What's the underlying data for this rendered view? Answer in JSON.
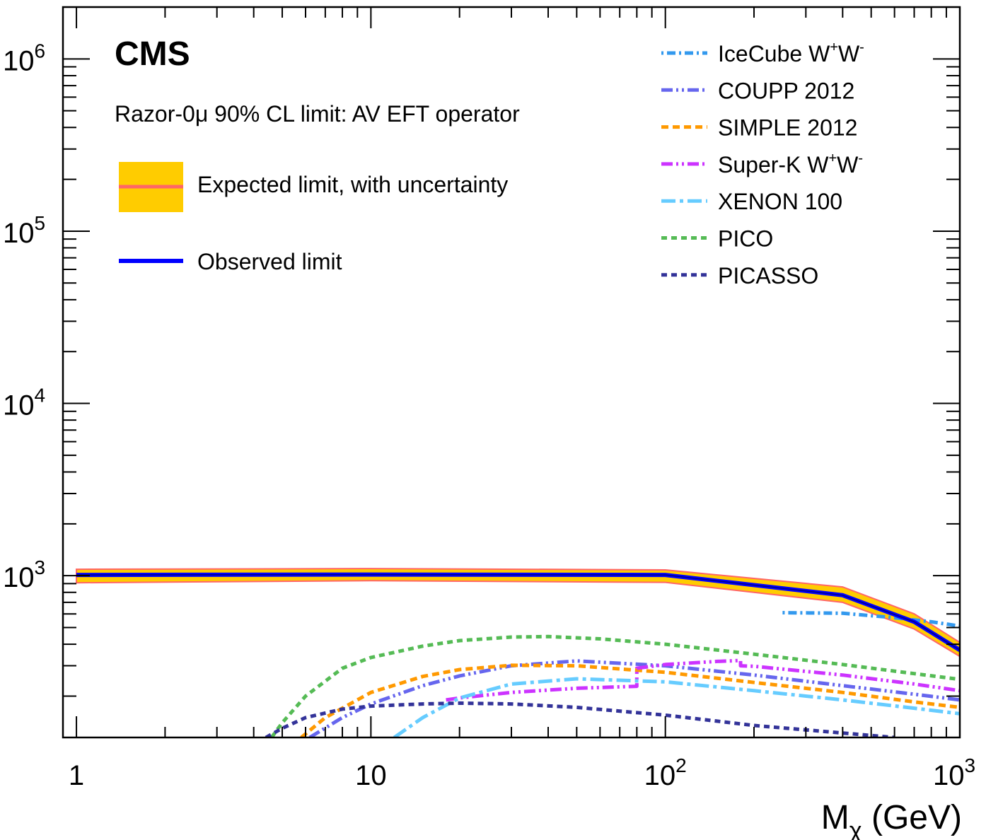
{
  "chart_data": {
    "type": "line",
    "experiment_label": "CMS",
    "subtitle": "Razor-0μ 90% CL limit: AV EFT operator",
    "xlabel": {
      "main": "M",
      "sub": "χ",
      "unit": " (GeV)"
    },
    "ylabel": "",
    "x_scale": "log",
    "y_scale": "log",
    "xlim": [
      0.9,
      1000
    ],
    "ylim": [
      115,
      2000000
    ],
    "x_tick_labels": [
      {
        "value": 1,
        "base": "1",
        "exp": ""
      },
      {
        "value": 10,
        "base": "10",
        "exp": ""
      },
      {
        "value": 100,
        "base": "10",
        "exp": "2"
      },
      {
        "value": 1000,
        "base": "10",
        "exp": "3"
      }
    ],
    "y_tick_labels": [
      {
        "value": 1000,
        "base": "10",
        "exp": "3"
      },
      {
        "value": 10000,
        "base": "10",
        "exp": "4"
      },
      {
        "value": 100000,
        "base": "10",
        "exp": "5"
      },
      {
        "value": 1000000,
        "base": "10",
        "exp": "6"
      }
    ],
    "grid": false,
    "expected_band": {
      "name": "Expected limit, with uncertainty",
      "fill_color": "#ffcc00",
      "line_color": "#ff6666",
      "x": [
        1,
        10,
        100,
        400,
        700,
        1000
      ],
      "median": [
        1000,
        1010,
        1000,
        780,
        540,
        370
      ],
      "lower": [
        910,
        935,
        915,
        700,
        490,
        340
      ],
      "upper": [
        1090,
        1100,
        1080,
        860,
        600,
        410
      ]
    },
    "observed": {
      "name": "Observed limit",
      "color": "#0000ff",
      "x": [
        1,
        10,
        100,
        400,
        700,
        1000
      ],
      "y": [
        1010,
        1015,
        1010,
        770,
        540,
        370
      ]
    },
    "series": [
      {
        "name": "IceCube W",
        "sup1": "+",
        "mid": "W",
        "sup2": "-",
        "color": "#3399ee",
        "dash": "3,5,12,5",
        "x": [
          250,
          400,
          600,
          800,
          1000
        ],
        "y": [
          610,
          605,
          570,
          540,
          510
        ]
      },
      {
        "name": "COUPP 2012",
        "color": "#6666ee",
        "dash": "16,5,3,5,3,5",
        "x": [
          6.2,
          8,
          10,
          15,
          20,
          30,
          50,
          100,
          200,
          400,
          700,
          1000
        ],
        "y": [
          115,
          150,
          180,
          230,
          262,
          300,
          320,
          300,
          265,
          230,
          205,
          190
        ]
      },
      {
        "name": "SIMPLE 2012",
        "color": "#ff9900",
        "dash": "10,6",
        "x": [
          5.8,
          7,
          10,
          15,
          20,
          30,
          50,
          100,
          200,
          400,
          700,
          1000
        ],
        "y": [
          115,
          150,
          210,
          260,
          285,
          302,
          300,
          275,
          240,
          210,
          185,
          172
        ]
      },
      {
        "name": "Super-K W",
        "sup1": "+",
        "mid": "W",
        "sup2": "-",
        "color": "#cc33ff",
        "dash": "16,5,3,5,3,5",
        "x": [
          18,
          20,
          30,
          50,
          80,
          80,
          100,
          150,
          180,
          180,
          200,
          400,
          700,
          1000
        ],
        "y": [
          190,
          195,
          210,
          222,
          228,
          290,
          305,
          318,
          322,
          300,
          298,
          265,
          235,
          215
        ]
      },
      {
        "name": "XENON 100",
        "color": "#66ccff",
        "dash": "20,6,5,6",
        "x": [
          12,
          15,
          20,
          30,
          50,
          100,
          200,
          400,
          700,
          1000
        ],
        "y": [
          115,
          150,
          195,
          235,
          252,
          242,
          215,
          190,
          170,
          158
        ]
      },
      {
        "name": "PICO",
        "color": "#55bb55",
        "dash": "8,6",
        "x": [
          4.6,
          5,
          6,
          8,
          10,
          15,
          20,
          30,
          40,
          60,
          100,
          200,
          400,
          700,
          1000
        ],
        "y": [
          115,
          140,
          200,
          290,
          335,
          390,
          420,
          440,
          443,
          430,
          400,
          350,
          305,
          270,
          250
        ]
      },
      {
        "name": "PICASSO",
        "color": "#333399",
        "dash": "8,6",
        "x": [
          4.4,
          5,
          6,
          8,
          10,
          15,
          20,
          30,
          50,
          100,
          200,
          400,
          600
        ],
        "y": [
          115,
          130,
          150,
          168,
          175,
          180,
          182,
          180,
          172,
          155,
          135,
          122,
          115
        ]
      }
    ]
  }
}
